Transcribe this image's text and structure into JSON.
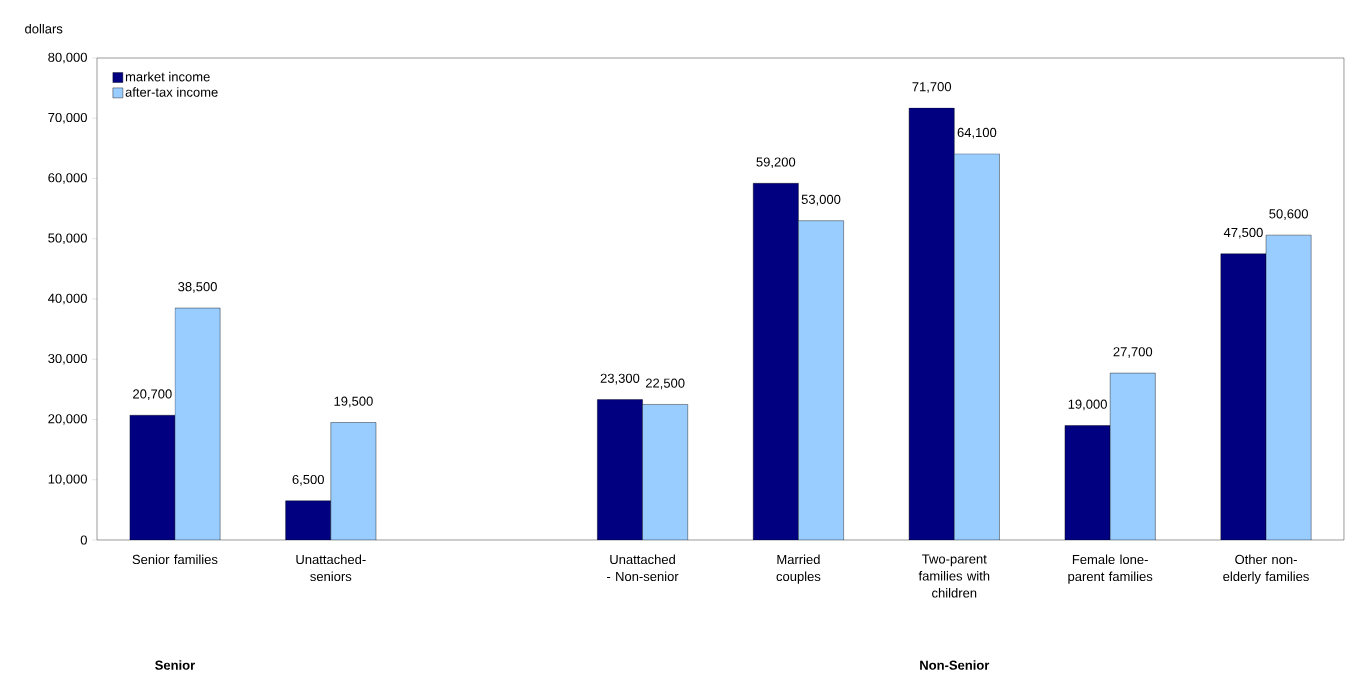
{
  "chart_data": {
    "type": "bar",
    "ylabel": "dollars",
    "categories": [
      "Senior families",
      "Unattached-seniors",
      null,
      "Unattached - Non-senior",
      "Married couples",
      "Two-parent families with children",
      "Female lone-parent families",
      "Other non-elderly families"
    ],
    "series": [
      {
        "name": "market income",
        "color": "#000080",
        "values": [
          20700,
          6500,
          null,
          23300,
          59200,
          71700,
          19000,
          47500
        ],
        "value_labels": [
          "20,700",
          "6,500",
          null,
          "23,300",
          "59,200",
          "71,700",
          "19,000",
          "47,500"
        ]
      },
      {
        "name": "after-tax income",
        "color": "#99ccff",
        "values": [
          38500,
          19500,
          null,
          22500,
          53000,
          64100,
          27700,
          50600
        ],
        "value_labels": [
          "38,500",
          "19,500",
          null,
          "22,500",
          "53,000",
          "64,100",
          "27,700",
          "50,600"
        ]
      }
    ],
    "ylim": [
      0,
      80000
    ],
    "yticks": [
      0,
      {
        "value": 10000,
        "label": "10,000"
      },
      {
        "value": 20000,
        "label": "20,000"
      },
      {
        "value": 30000,
        "label": "30,000"
      },
      {
        "value": 40000,
        "label": "40,000"
      },
      {
        "value": 50000,
        "label": "50,000"
      },
      {
        "value": 60000,
        "label": "60,000"
      },
      {
        "value": 70000,
        "label": "70,000"
      },
      {
        "value": 80000,
        "label": "80,000"
      }
    ],
    "grid": false,
    "legend": "top left",
    "annotations": [
      "Senior",
      "Non-Senior"
    ]
  }
}
